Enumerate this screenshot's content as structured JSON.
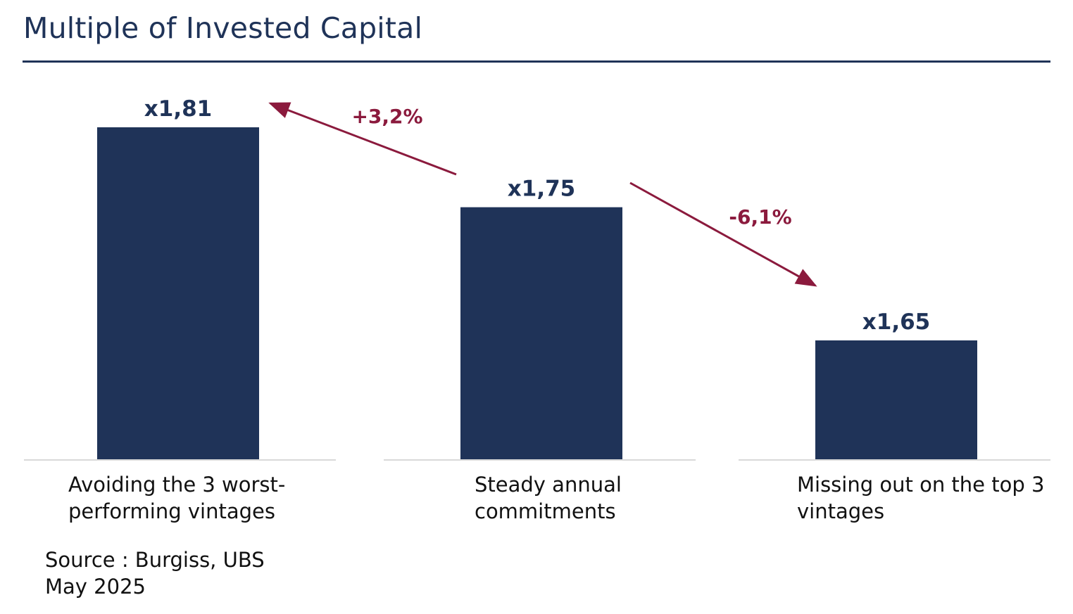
{
  "title": "Multiple of Invested Capital",
  "source_lines": [
    "Source : Burgiss, UBS",
    "May 2025"
  ],
  "colors": {
    "bar": "#1f3358",
    "title": "#1f3358",
    "arrow": "#8b1a3d",
    "baseline": "#d9d9d9"
  },
  "chart_data": {
    "type": "bar",
    "title": "Multiple of Invested Capital",
    "categories": [
      "Avoiding the 3 worst-performing vintages",
      "Steady annual commitments",
      "Missing out on the top 3 vintages"
    ],
    "category_label_lines": [
      [
        "Avoiding the 3 worst-",
        "performing vintages"
      ],
      [
        "Steady annual",
        "commitments"
      ],
      [
        "Missing out on the top 3",
        "vintages"
      ]
    ],
    "values": [
      1.81,
      1.75,
      1.65
    ],
    "data_labels": [
      "x1,81",
      "x1,75",
      "x1,65"
    ],
    "annotations": [
      {
        "text": "+3,2%",
        "from_category": 1,
        "to_category": 0
      },
      {
        "text": "-6,1%",
        "from_category": 1,
        "to_category": 2
      }
    ],
    "grid": false,
    "legend": "none"
  }
}
